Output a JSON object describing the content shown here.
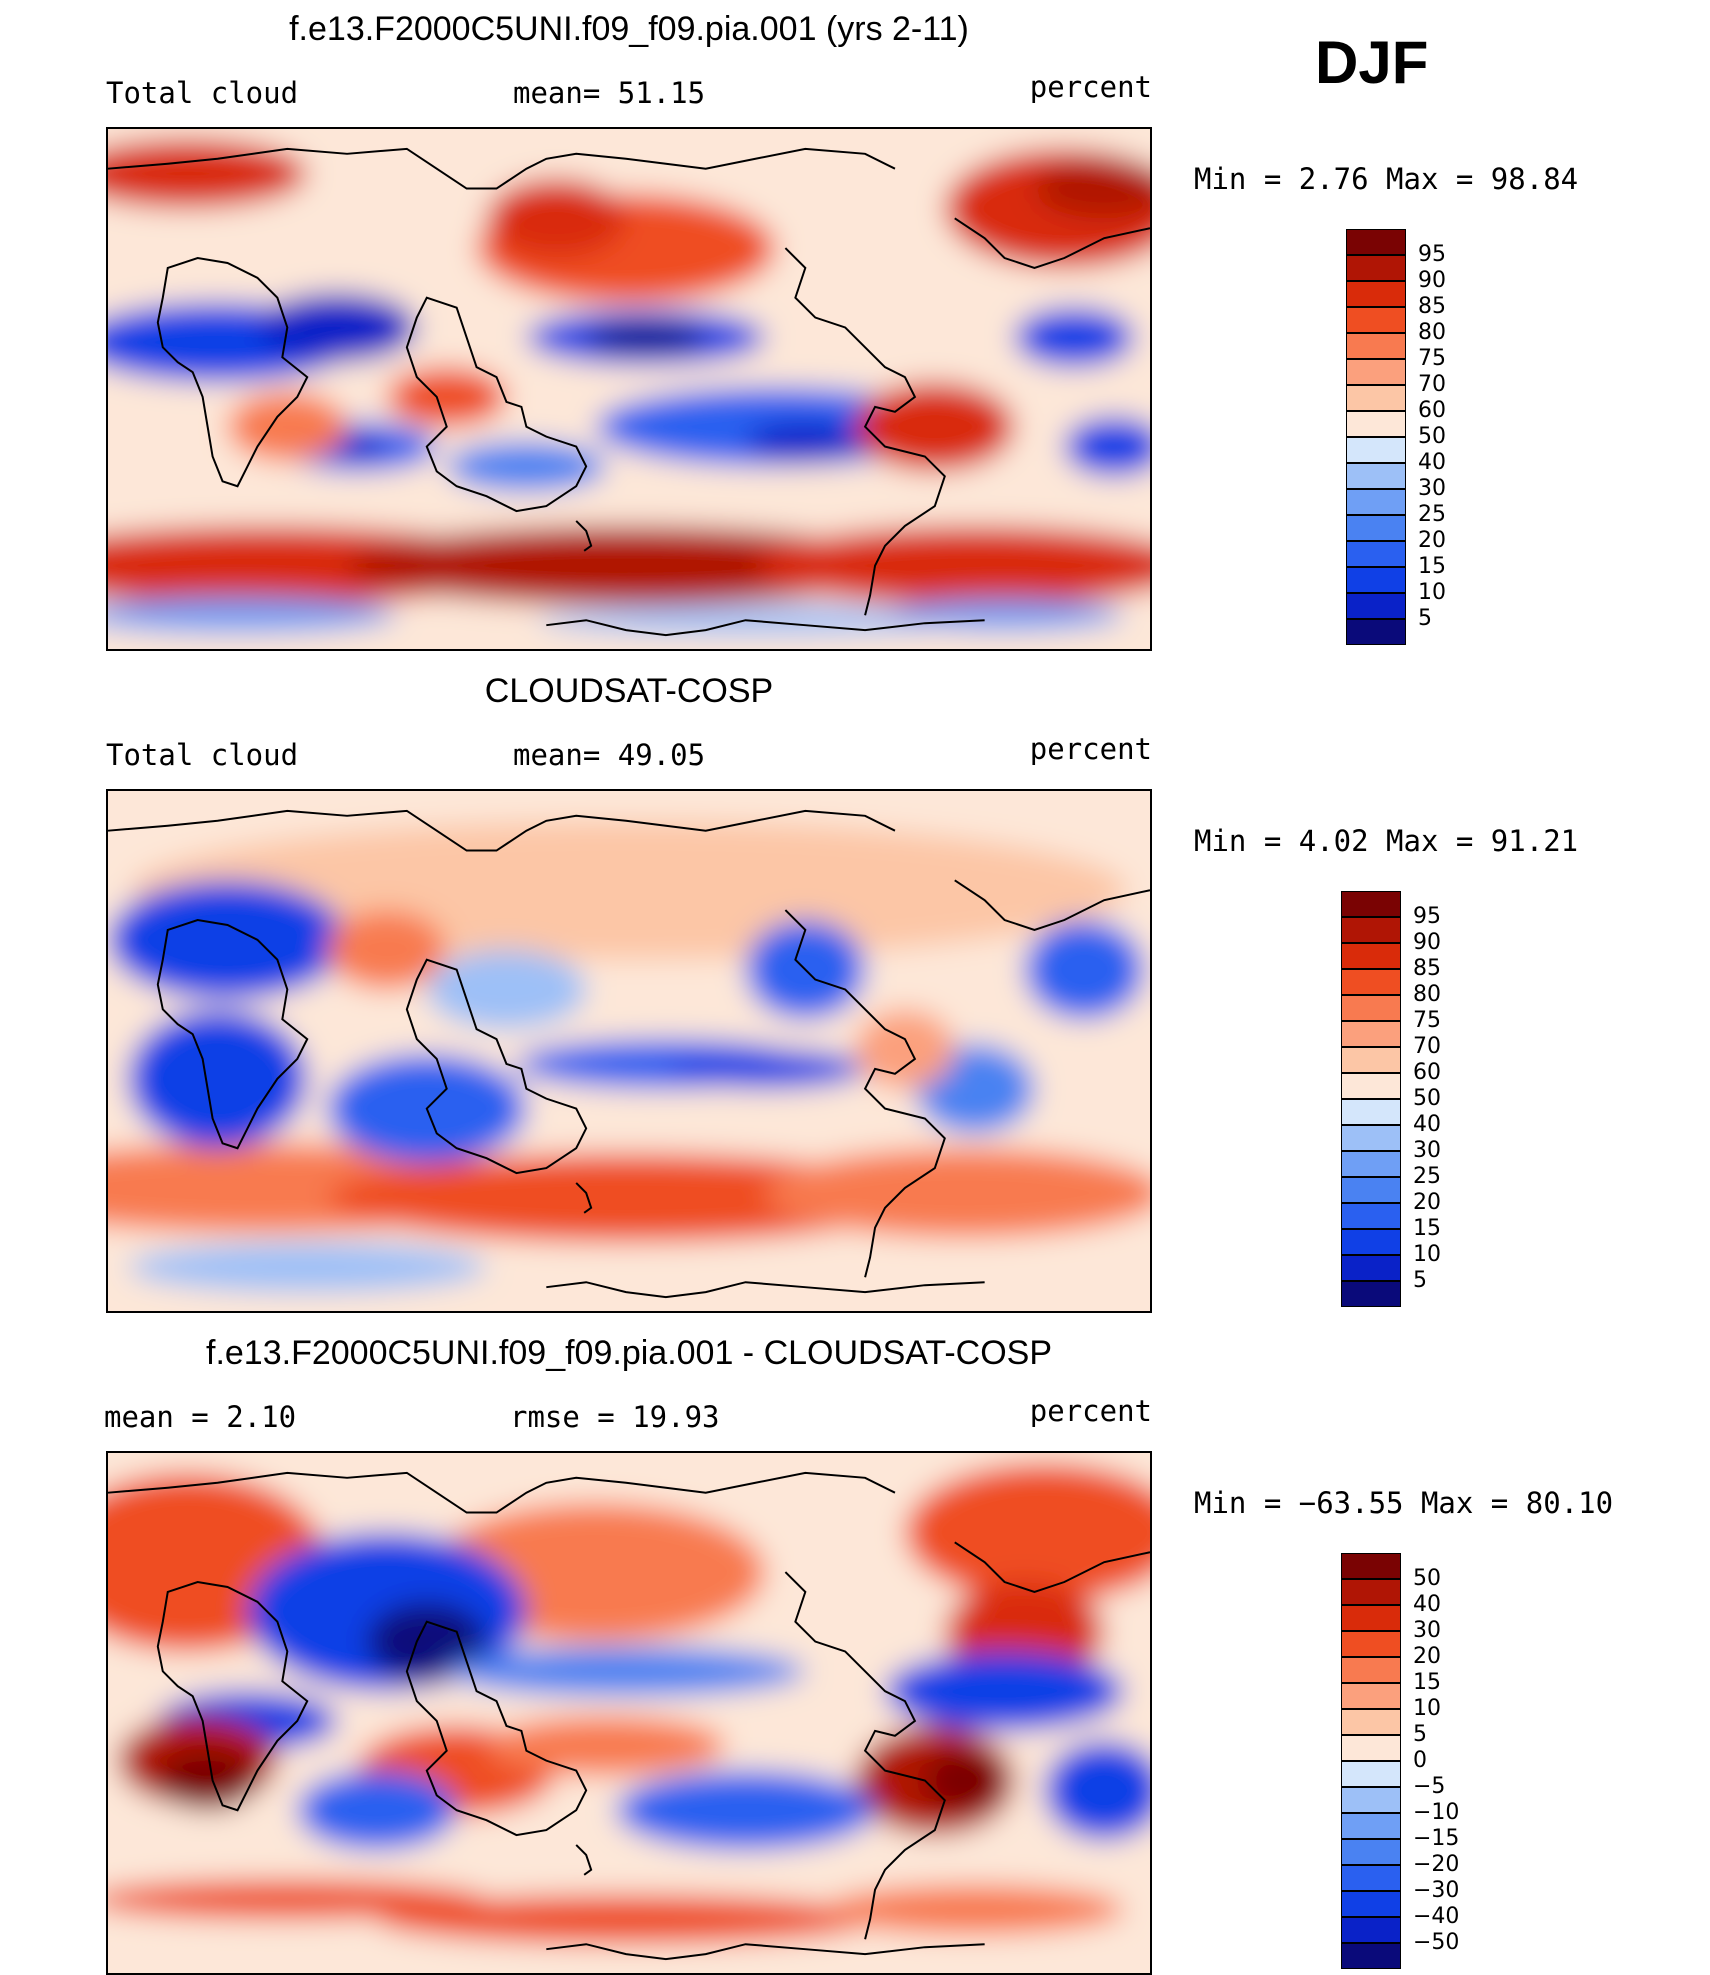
{
  "season": "DJF",
  "colors": {
    "cloud": [
      "#0a0a7a",
      "#0a22c8",
      "#1040e6",
      "#2a60f0",
      "#4a82f2",
      "#6f9ff5",
      "#9dc0f7",
      "#d4e6fb",
      "#fde7d8",
      "#fcc6a6",
      "#fba07d",
      "#f87a50",
      "#ef4e22",
      "#d92b0a",
      "#b01505",
      "#7a0303"
    ],
    "diff": [
      "#0a0a7a",
      "#0a22c8",
      "#1040e6",
      "#2a60f0",
      "#4a82f2",
      "#6f9ff5",
      "#9dc0f7",
      "#d4e6fb",
      "#fde7d8",
      "#fcc6a6",
      "#fba07d",
      "#f87a50",
      "#ef4e22",
      "#d92b0a",
      "#b01505",
      "#7a0303"
    ]
  },
  "panels": [
    {
      "title": "f.e13.F2000C5UNI.f09_f09.pia.001 (yrs 2-11)",
      "left_label": "Total cloud",
      "center_label": "mean=   51.15",
      "right_label": "percent",
      "minmax": "Min  =     2.76  Max  =    98.84",
      "cbar_labels": [
        "95",
        "90",
        "85",
        "80",
        "75",
        "70",
        "60",
        "50",
        "40",
        "30",
        "25",
        "20",
        "15",
        "10",
        "5"
      ],
      "palette": "cloud",
      "map_variant": "model"
    },
    {
      "title": "CLOUDSAT-COSP",
      "left_label": "Total cloud",
      "center_label": "mean=   49.05",
      "right_label": "percent",
      "minmax": "Min  =     4.02  Max  =    91.21",
      "cbar_labels": [
        "95",
        "90",
        "85",
        "80",
        "75",
        "70",
        "60",
        "50",
        "40",
        "30",
        "25",
        "20",
        "15",
        "10",
        "5"
      ],
      "palette": "cloud",
      "map_variant": "obs"
    },
    {
      "title": "f.e13.F2000C5UNI.f09_f09.pia.001 - CLOUDSAT-COSP",
      "left_label": "mean  =     2.10",
      "center_label": "rmse  =    19.93",
      "right_label": "percent",
      "minmax": "Min  = −63.55  Max  =    80.10",
      "cbar_labels": [
        "50",
        "40",
        "30",
        "20",
        "15",
        "10",
        "5",
        "0",
        "−5",
        "−10",
        "−15",
        "−20",
        "−30",
        "−40",
        "−50"
      ],
      "palette": "diff",
      "map_variant": "diff"
    }
  ]
}
